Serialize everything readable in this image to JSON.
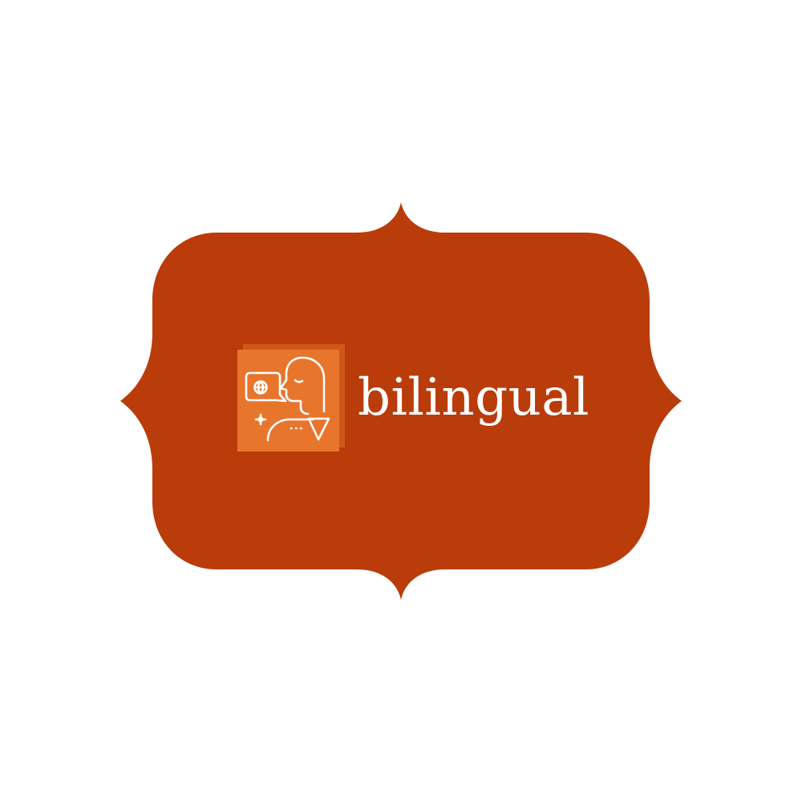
{
  "brand": {
    "name": "bilingual"
  },
  "colors": {
    "page_background": "#ffffff",
    "badge_fill": "#b93c0a",
    "icon_tile": "#e8752c",
    "icon_tile_shadow": "#d1561a",
    "text": "#ffffff"
  },
  "icon": {
    "name": "speaking-person-globe-icon"
  }
}
